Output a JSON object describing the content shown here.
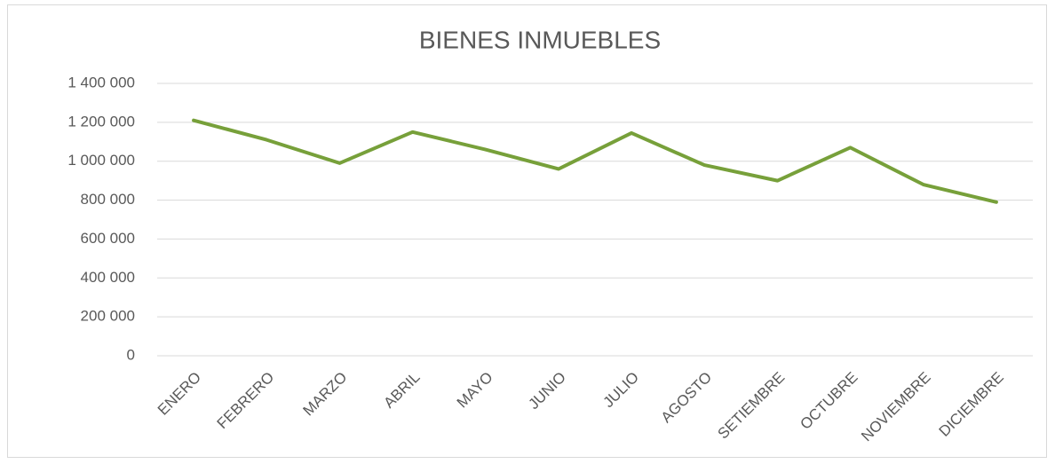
{
  "chart_data": {
    "type": "line",
    "title": "BIENES INMUEBLES",
    "categories": [
      "ENERO",
      "FEBRERO",
      "MARZO",
      "ABRIL",
      "MAYO",
      "JUNIO",
      "JULIO",
      "AGOSTO",
      "SETIEMBRE",
      "OCTUBRE",
      "NOVIEMBRE",
      "DICIEMBRE"
    ],
    "values": [
      1210000,
      1110000,
      990000,
      1150000,
      1060000,
      960000,
      1145000,
      980000,
      900000,
      1070000,
      880000,
      790000
    ],
    "color": "#77a03a",
    "ylim": [
      0,
      1400000
    ],
    "yticks": [
      0,
      {
        "value": 200000,
        "label": "200 000"
      },
      {
        "value": 400000,
        "label": "400 000"
      },
      {
        "value": 600000,
        "label": "600 000"
      },
      {
        "value": 800000,
        "label": "800 000"
      },
      {
        "value": 1000000,
        "label": "1 000 000"
      },
      {
        "value": 1200000,
        "label": "1 200 000"
      },
      {
        "value": 1400000,
        "label": "1 400 000"
      }
    ],
    "grid": true
  }
}
